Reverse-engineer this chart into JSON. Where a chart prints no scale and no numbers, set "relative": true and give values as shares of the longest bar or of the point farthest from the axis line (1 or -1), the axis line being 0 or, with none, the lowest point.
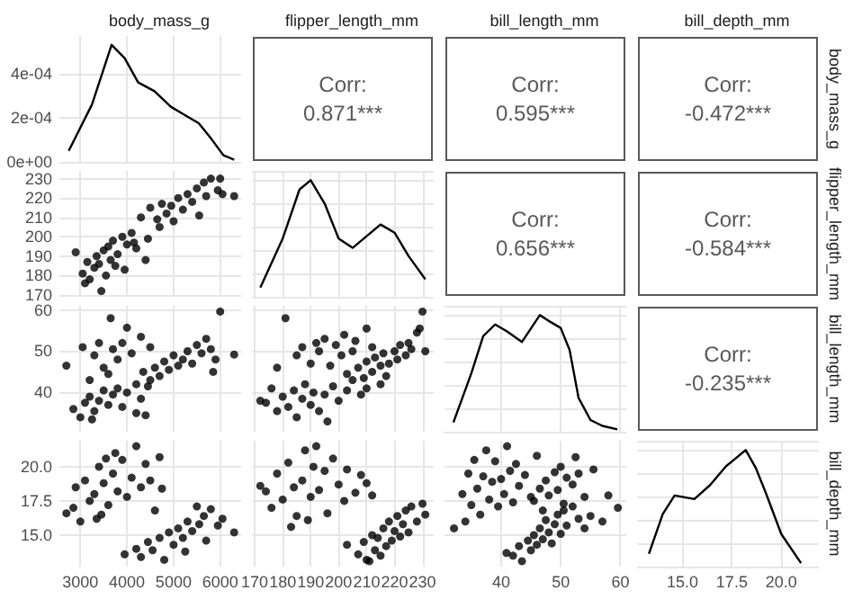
{
  "chart_data": [
    {
      "type": "line",
      "title": "body_mass_g",
      "xlim": [
        2550,
        6450
      ],
      "xticks": [
        3000,
        4000,
        5000,
        6000
      ],
      "ylim": [
        0,
        0.00057
      ],
      "yticks": [
        {
          "value": 0,
          "label": "0e+00"
        },
        {
          "value": 0.0002,
          "label": "2e-04"
        },
        {
          "value": 0.0004,
          "label": "4e-04"
        }
      ],
      "grid": true,
      "tick_labels": "y",
      "series": [
        {
          "color": "#000000",
          "x": [
            2750,
            3250,
            3670,
            3950,
            4240,
            4590,
            4940,
            5260,
            5540,
            5790,
            6070,
            6300
          ],
          "values": [
            5e-05,
            0.00026,
            0.00053,
            0.00047,
            0.00036,
            0.00032,
            0.00025,
            0.00021,
            0.000175,
            0.00011,
            3e-05,
            1e-05
          ]
        }
      ]
    },
    {
      "type": "other",
      "title": "flipper_length_mm",
      "annotations": [
        "Corr:",
        "0.871***"
      ]
    },
    {
      "type": "other",
      "title": "bill_length_mm",
      "annotations": [
        "Corr:",
        "0.595***"
      ]
    },
    {
      "type": "other",
      "title": "bill_depth_mm",
      "y2label": "body_mass_g",
      "annotations": [
        "Corr:",
        "-0.472***"
      ]
    },
    {
      "type": "scatter",
      "xlim": [
        2550,
        6450
      ],
      "xticks": [
        3000,
        4000,
        5000,
        6000
      ],
      "ylim": [
        169,
        234
      ],
      "yticks": [
        170,
        180,
        190,
        200,
        210,
        220,
        230
      ],
      "grid": true,
      "tick_labels": "y",
      "marker": "circle",
      "series": [
        {
          "color": "#000000",
          "x": [
            2900,
            3050,
            3150,
            3200,
            3300,
            3350,
            3400,
            3450,
            3500,
            3550,
            3600,
            3650,
            3700,
            3750,
            3800,
            3900,
            3950,
            4000,
            4100,
            4200,
            4300,
            4400,
            4500,
            4650,
            4700,
            4750,
            4850,
            4950,
            5000,
            5100,
            5200,
            5300,
            5400,
            5500,
            5550,
            5650,
            5700,
            5800,
            5950,
            6000,
            6050,
            6300,
            3100,
            4450,
            4150
          ],
          "values": [
            192,
            181,
            187,
            178,
            184,
            190,
            186,
            172,
            193,
            180,
            195,
            188,
            198,
            185,
            191,
            200,
            183,
            196,
            202,
            194,
            210,
            188,
            215,
            209,
            205,
            217,
            212,
            216,
            208,
            220,
            214,
            222,
            218,
            225,
            211,
            228,
            221,
            230,
            224,
            230,
            222,
            221,
            176,
            199,
            197
          ]
        }
      ]
    },
    {
      "type": "line",
      "xlim": [
        169,
        234
      ],
      "xticks": [
        170,
        180,
        190,
        200,
        210,
        220,
        230
      ],
      "relative": true,
      "grid": true,
      "tick_labels": false,
      "series": [
        {
          "color": "#000000",
          "x": [
            172,
            180,
            186,
            190,
            195,
            200,
            205,
            210,
            215,
            220,
            225,
            231
          ],
          "values": [
            0.08,
            0.5,
            0.92,
            1,
            0.8,
            0.5,
            0.42,
            0.52,
            0.62,
            0.55,
            0.35,
            0.15
          ]
        }
      ]
    },
    {
      "type": "other",
      "annotations": [
        "Corr:",
        "0.656***"
      ]
    },
    {
      "type": "other",
      "y2label": "flipper_length_mm",
      "annotations": [
        "Corr:",
        "-0.584***"
      ]
    },
    {
      "type": "scatter",
      "xlim": [
        2550,
        6450
      ],
      "xticks": [
        3000,
        4000,
        5000,
        6000
      ],
      "ylim": [
        30.5,
        61
      ],
      "yticks": [
        40,
        50,
        60
      ],
      "grid": true,
      "tick_labels": "y",
      "marker": "circle",
      "series": [
        {
          "color": "#000000",
          "x": [
            2850,
            3000,
            3100,
            3200,
            3300,
            3400,
            3500,
            3600,
            3700,
            3800,
            3900,
            4000,
            4200,
            4300,
            4450,
            3250,
            2700,
            3050,
            3300,
            3400,
            3500,
            3650,
            3700,
            3800,
            3900,
            4000,
            4100,
            4300,
            4500,
            3600,
            3200,
            4200,
            4400,
            4350,
            4500,
            4600,
            4700,
            4800,
            4900,
            5000,
            5100,
            5200,
            5300,
            5400,
            5500,
            5600,
            5700,
            5800,
            5900,
            6000,
            6300,
            5850
          ],
          "values": [
            36,
            34,
            37.5,
            39,
            35.5,
            38,
            40.5,
            37,
            39.5,
            41,
            36.5,
            40,
            42,
            38.5,
            41.5,
            33.5,
            46.5,
            51,
            49,
            52,
            46,
            58,
            50.5,
            48,
            52,
            55.7,
            49.5,
            53.5,
            51,
            44.5,
            43,
            35,
            34.5,
            45,
            43,
            46,
            44,
            47.5,
            45.5,
            49,
            46.5,
            48,
            50,
            47,
            51.5,
            49.5,
            53,
            50.5,
            48,
            59.6,
            49.2,
            45
          ]
        }
      ]
    },
    {
      "type": "scatter",
      "xlim": [
        169,
        234
      ],
      "xticks": [
        170,
        180,
        190,
        200,
        210,
        220,
        230
      ],
      "ylim": [
        30.5,
        61
      ],
      "yticks": [
        40,
        50,
        60
      ],
      "grid": true,
      "tick_labels": false,
      "marker": "circle",
      "series": [
        {
          "color": "#000000",
          "x": [
            172,
            174,
            176,
            178,
            180,
            182,
            184,
            185,
            187,
            188,
            190,
            191,
            193,
            195,
            196,
            198,
            200,
            203,
            205,
            208,
            210,
            181,
            178,
            185,
            187,
            190,
            192,
            193,
            195,
            197,
            199,
            201,
            202,
            205,
            206,
            210,
            212,
            203,
            207,
            209,
            210,
            212,
            213,
            215,
            216,
            217,
            218,
            220,
            221,
            222,
            224,
            225,
            226,
            228,
            229,
            230,
            231,
            215
          ],
          "values": [
            38,
            37.5,
            41,
            35.5,
            39,
            36.5,
            40.5,
            34,
            38.5,
            42,
            37,
            40,
            35.5,
            39.5,
            33,
            41.5,
            38,
            40.5,
            43,
            39.5,
            41,
            58,
            46,
            49,
            51,
            47,
            52,
            50,
            53,
            46.5,
            51.5,
            49,
            54,
            50,
            52.5,
            55.5,
            51,
            44.5,
            46,
            43.5,
            47.5,
            45,
            48.5,
            46.5,
            49.5,
            44,
            47,
            50,
            48,
            51.5,
            49,
            52,
            50.5,
            54.5,
            55.5,
            59.6,
            50,
            42
          ]
        }
      ]
    },
    {
      "type": "line",
      "xlim": [
        30.5,
        61
      ],
      "xticks": [
        40,
        50,
        60
      ],
      "relative": true,
      "grid": true,
      "tick_labels": false,
      "series": [
        {
          "color": "#000000",
          "x": [
            32,
            35,
            37,
            39,
            41,
            43.5,
            46.5,
            48,
            50,
            51.5,
            53,
            55,
            57,
            59.5
          ],
          "values": [
            0.08,
            0.5,
            0.82,
            0.92,
            0.86,
            0.77,
            1,
            0.95,
            0.89,
            0.7,
            0.29,
            0.1,
            0.05,
            0.02
          ]
        }
      ]
    },
    {
      "type": "other",
      "y2label": "bill_length_mm",
      "annotations": [
        "Corr:",
        "-0.235***"
      ]
    },
    {
      "type": "scatter",
      "xlim": [
        2550,
        6450
      ],
      "xticks": [
        3000,
        4000,
        5000,
        6000
      ],
      "ylim": [
        12.7,
        21.9
      ],
      "yticks": [
        {
          "value": 15,
          "label": "15.0"
        },
        17.5,
        {
          "value": 20,
          "label": "20.0"
        }
      ],
      "grid": true,
      "marker": "circle",
      "series": [
        {
          "color": "#000000",
          "x": [
            2700,
            2850,
            2900,
            3000,
            3100,
            3200,
            3300,
            3400,
            3450,
            3500,
            3600,
            3700,
            3750,
            3800,
            3900,
            4000,
            4100,
            4200,
            4300,
            4400,
            4500,
            4600,
            4700,
            4750,
            3350,
            3550,
            3950,
            4200,
            4300,
            4450,
            4550,
            4700,
            4800,
            4900,
            5000,
            5100,
            5200,
            5300,
            5400,
            5500,
            5550,
            5650,
            5700,
            5800,
            5950,
            6050,
            6300,
            5250
          ],
          "values": [
            16.6,
            17,
            18.5,
            16,
            19,
            17.5,
            18,
            20,
            16.5,
            18.8,
            17.2,
            19.5,
            21,
            18.2,
            20.5,
            17.8,
            19.2,
            21.5,
            18.5,
            20.2,
            19,
            16.8,
            20.7,
            18.4,
            16.2,
            20.6,
            13.6,
            14,
            13.4,
            14.5,
            13.9,
            14.8,
            13.2,
            15.2,
            14.3,
            15.5,
            14.8,
            16,
            15.3,
            17.1,
            15.8,
            16.4,
            14.6,
            16.9,
            15.7,
            16.2,
            15.2,
            13.8
          ]
        }
      ]
    },
    {
      "type": "scatter",
      "xlim": [
        169,
        234
      ],
      "xticks": [
        170,
        180,
        190,
        200,
        210,
        220,
        230
      ],
      "ylim": [
        12.7,
        21.9
      ],
      "yticks": [
        15,
        17.5,
        20
      ],
      "grid": true,
      "tick_labels": "x",
      "marker": "circle",
      "series": [
        {
          "color": "#000000",
          "x": [
            172,
            174,
            176,
            178,
            180,
            182,
            184,
            185,
            187,
            188,
            190,
            191,
            192,
            193,
            195,
            196,
            198,
            200,
            202,
            203,
            206,
            208,
            210,
            212,
            183,
            189,
            203,
            207,
            209,
            210,
            212,
            213,
            214,
            215,
            216,
            217,
            218,
            219,
            220,
            221,
            222,
            223,
            224,
            225,
            226,
            228,
            230,
            231,
            211
          ],
          "values": [
            18.6,
            18.2,
            17,
            19.5,
            17.6,
            20.3,
            18.5,
            16.4,
            19,
            21.2,
            17.8,
            20,
            21.5,
            18.3,
            19.7,
            16.6,
            20.6,
            18.7,
            17.5,
            19.8,
            18.1,
            19.4,
            18.8,
            17.9,
            15.6,
            16.1,
            14.3,
            13.6,
            14.5,
            13.2,
            15,
            13.9,
            14.8,
            13.5,
            15.5,
            14.2,
            16,
            14.6,
            15.3,
            16.4,
            14.9,
            15.8,
            16.8,
            15.2,
            17.1,
            16,
            17.3,
            16.5,
            13.1
          ]
        }
      ]
    },
    {
      "type": "scatter",
      "xlim": [
        30.5,
        61
      ],
      "xticks": [
        40,
        50,
        60
      ],
      "ylim": [
        12.7,
        21.9
      ],
      "yticks": [
        15,
        17.5,
        20
      ],
      "grid": true,
      "tick_labels": "x",
      "marker": "circle",
      "series": [
        {
          "color": "#000000",
          "x": [
            33.5,
            34.5,
            35,
            35.5,
            36,
            36.5,
            37,
            37.5,
            38,
            38.5,
            39,
            39.5,
            40,
            40.5,
            41,
            41.5,
            42,
            42.5,
            43,
            44,
            45,
            46,
            32.1,
            34,
            45.5,
            46.5,
            47,
            47.5,
            48,
            49,
            49.5,
            50,
            50.5,
            51,
            52,
            52.5,
            53,
            54,
            55.5,
            58,
            40.9,
            42,
            43,
            43.5,
            44.5,
            45,
            45.5,
            46,
            46.5,
            47,
            47.5,
            48,
            48.5,
            49,
            49.5,
            50,
            50.5,
            51,
            52,
            53,
            54,
            55,
            59.6,
            57
          ],
          "values": [
            18,
            19.5,
            17.2,
            20.5,
            18.4,
            16.5,
            19.3,
            21.2,
            17.6,
            18.9,
            20.4,
            17.1,
            19.1,
            18,
            21.5,
            19.7,
            17.4,
            20.2,
            18.6,
            19.4,
            17.8,
            20.8,
            15.5,
            16,
            17.5,
            18.4,
            16.8,
            19,
            17.9,
            19.6,
            18.3,
            20,
            17.3,
            19.2,
            18.7,
            20.7,
            19.5,
            17.8,
            19.8,
            17.9,
            13.7,
            13.5,
            14.2,
            13.1,
            14.6,
            13.9,
            15,
            14.3,
            15.5,
            14.7,
            16.1,
            15.2,
            14.4,
            15.8,
            16.5,
            15.1,
            16.8,
            15.7,
            17.1,
            16.2,
            15.5,
            16.4,
            17,
            16
          ]
        }
      ]
    },
    {
      "type": "line",
      "xlim": [
        12.7,
        21.9
      ],
      "xticks": [
        {
          "value": 15,
          "label": "15.0"
        },
        17.5,
        {
          "value": 20,
          "label": "20.0"
        }
      ],
      "relative": true,
      "grid": true,
      "tick_labels": "x",
      "y2label": "bill_depth_mm",
      "series": [
        {
          "color": "#000000",
          "x": [
            13.3,
            14,
            14.6,
            15.6,
            16.4,
            17.2,
            18.2,
            18.7,
            19.2,
            20,
            21
          ],
          "values": [
            0.11,
            0.45,
            0.61,
            0.58,
            0.7,
            0.86,
            1,
            0.85,
            0.64,
            0.28,
            0.03
          ]
        }
      ]
    }
  ]
}
